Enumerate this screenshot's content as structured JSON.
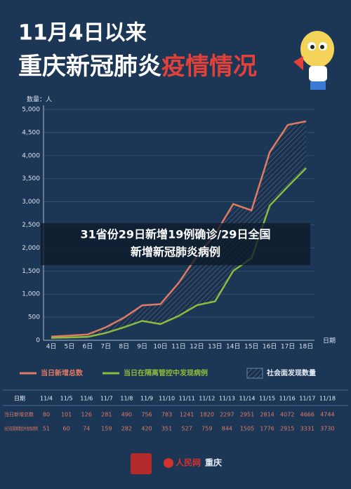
{
  "header": {
    "subtitle": "11月4日以来",
    "title_main": "重庆新冠肺炎",
    "title_highlight": "疫情情况"
  },
  "chart_data": {
    "type": "line",
    "y_label": "数量：人",
    "x_label": "日期",
    "categories": [
      "4日",
      "5日",
      "6日",
      "7日",
      "8日",
      "9日",
      "10日",
      "11日",
      "12日",
      "13日",
      "14日",
      "15日",
      "16日",
      "17日",
      "18日"
    ],
    "series": [
      {
        "name": "当日新增总数",
        "color": "#e07a62",
        "values": [
          80,
          101,
          126,
          281,
          490,
          756,
          783,
          1241,
          1820,
          2297,
          2951,
          2814,
          4072,
          4666,
          4744
        ]
      },
      {
        "name": "当日在隔离管控中发现病例",
        "color": "#8dbb3c",
        "values": [
          51,
          60,
          74,
          159,
          282,
          420,
          351,
          527,
          759,
          844,
          1505,
          1776,
          2915,
          3331,
          3730
        ]
      }
    ],
    "area_label": "社会面发现数量",
    "ylim": [
      0,
      5000
    ],
    "yticks": [
      0,
      500,
      {
        "value": 1000,
        "label": "1,000"
      },
      {
        "value": 1500,
        "label": "1,500"
      },
      {
        "value": 2000,
        "label": "2,000"
      },
      {
        "value": 2500,
        "label": "2,500"
      },
      {
        "value": 3000,
        "label": "3,000"
      },
      {
        "value": 3500,
        "label": "3,500"
      },
      {
        "value": 4000,
        "label": "4,000"
      },
      {
        "value": 4500,
        "label": "4,500"
      },
      {
        "value": 5000,
        "label": "5,000"
      }
    ],
    "grid": true
  },
  "table": {
    "header_label": "日期",
    "dates": [
      "11/4",
      "11/5",
      "11/6",
      "11/7",
      "11/8",
      "11/9",
      "11/10",
      "11/11",
      "11/12",
      "11/13",
      "11/14",
      "11/15",
      "11/16",
      "11/17",
      "11/18"
    ]
  },
  "overlay": {
    "line1": "31省份29日新增19例确诊/29日全国",
    "line2": "新增新冠肺炎病例"
  },
  "footer": {
    "brand": "人民网",
    "city": "重庆"
  }
}
